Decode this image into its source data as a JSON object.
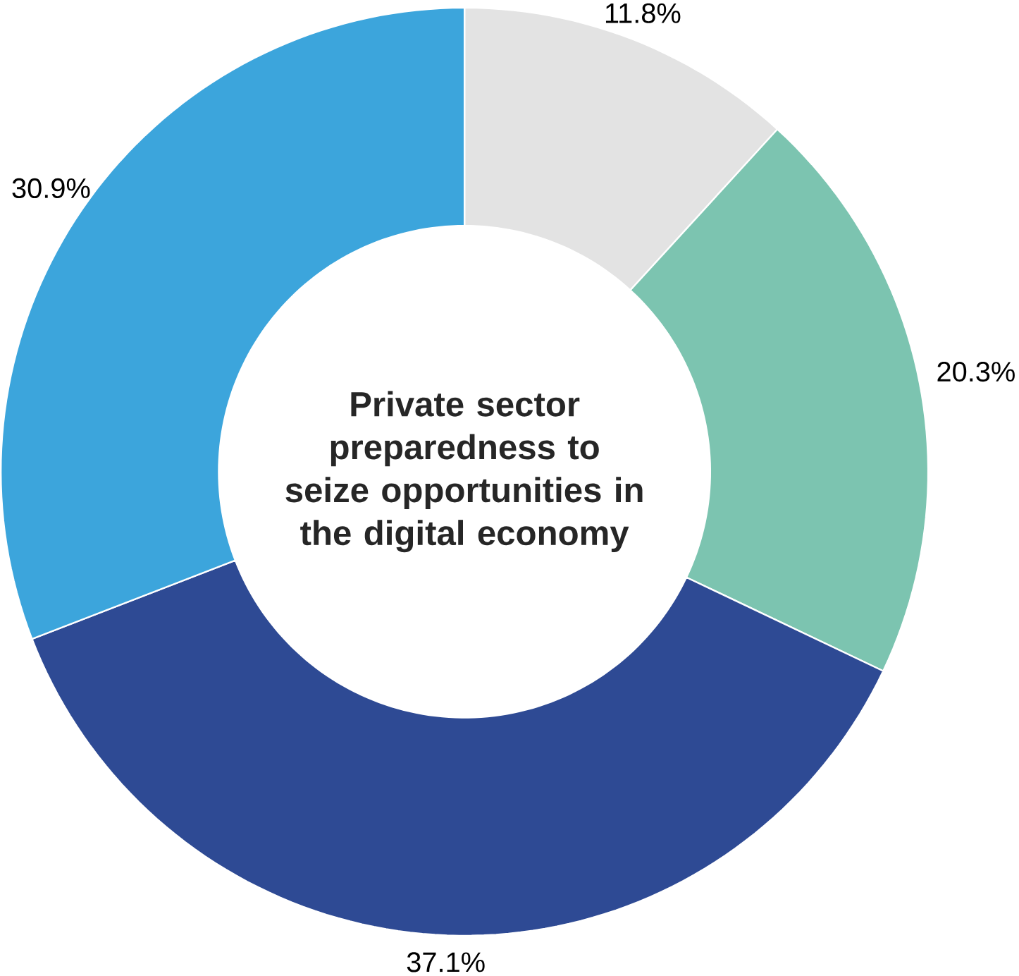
{
  "chart_data": {
    "type": "donut",
    "title": "Private sector preparedness to seize opportunities in the digital economy",
    "categories": [
      null,
      null,
      null,
      null
    ],
    "values": [
      11.8,
      20.3,
      37.1,
      30.9
    ],
    "colors": [
      "#e3e3e3",
      "#7cc4b0",
      "#2e4a94",
      "#3ca5dc"
    ],
    "value_labels": [
      "11.8%",
      "20.3%",
      "37.1%",
      "30.9%"
    ]
  }
}
